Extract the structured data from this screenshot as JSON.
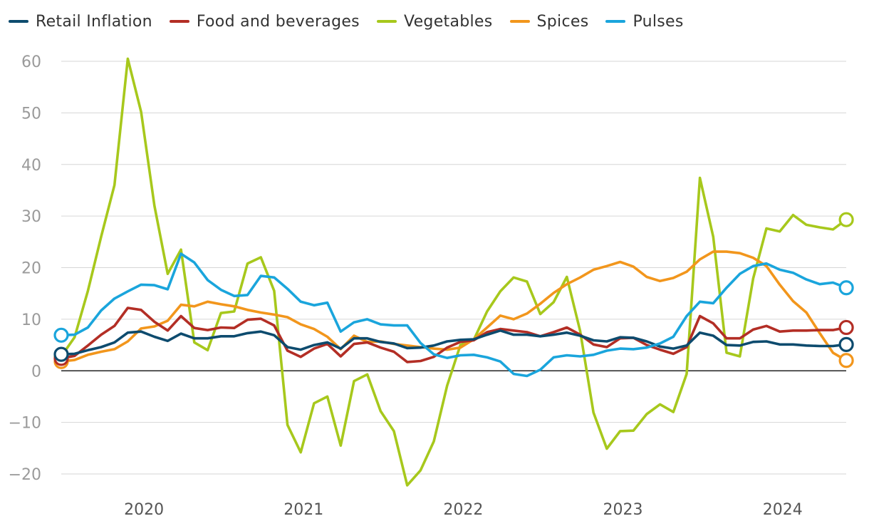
{
  "chart_data": {
    "type": "line",
    "x_start": "2019-07",
    "yticks": [
      -20,
      -10,
      0,
      10,
      20,
      30,
      40,
      50,
      60
    ],
    "ylim": [
      -22,
      62
    ],
    "xticks": [
      {
        "label": "2020",
        "index": 6
      },
      {
        "label": "2021",
        "index": 18
      },
      {
        "label": "2022",
        "index": 30
      },
      {
        "label": "2023",
        "index": 42
      },
      {
        "label": "2024",
        "index": 54
      }
    ],
    "series": [
      {
        "name": "Vegetables",
        "color": "#a7c81c",
        "values": [
          2.8,
          6.5,
          15.5,
          26.0,
          36.0,
          60.5,
          50.2,
          32.0,
          18.8,
          23.5,
          5.5,
          4.0,
          11.2,
          11.5,
          20.8,
          22.0,
          15.5,
          -10.5,
          -15.8,
          -6.3,
          -5.0,
          -14.5,
          -2.0,
          -0.7,
          -7.8,
          -11.7,
          -22.2,
          -19.3,
          -13.7,
          -2.9,
          5.0,
          6.0,
          11.5,
          15.4,
          18.1,
          17.3,
          11.0,
          13.3,
          18.2,
          7.7,
          -8.1,
          -15.1,
          -11.7,
          -11.6,
          -8.4,
          -6.5,
          -8.0,
          -0.6,
          37.4,
          26.0,
          3.5,
          2.8,
          17.9,
          27.6,
          27.0,
          30.2,
          28.3,
          27.8,
          27.4,
          29.3
        ]
      },
      {
        "name": "Spices",
        "color": "#f2961c",
        "values": [
          1.8,
          2.1,
          3.1,
          3.7,
          4.2,
          5.7,
          8.2,
          8.6,
          9.7,
          12.8,
          12.5,
          13.4,
          12.9,
          12.5,
          11.8,
          11.3,
          10.9,
          10.4,
          9.0,
          8.1,
          6.6,
          4.2,
          6.8,
          5.6,
          5.7,
          5.2,
          4.9,
          4.6,
          4.3,
          4.1,
          4.5,
          6.1,
          8.4,
          10.7,
          10.0,
          11.1,
          13.0,
          15.1,
          16.8,
          18.1,
          19.6,
          20.3,
          21.1,
          20.2,
          18.2,
          17.4,
          18.0,
          19.2,
          21.6,
          23.1,
          23.1,
          22.8,
          21.9,
          20.3,
          16.7,
          13.5,
          11.3,
          7.3,
          3.5,
          2.0
        ]
      },
      {
        "name": "Food and beverages",
        "color": "#b32e25",
        "values": [
          2.4,
          2.9,
          4.9,
          7.0,
          8.7,
          12.2,
          11.8,
          9.5,
          7.8,
          10.6,
          8.3,
          7.9,
          8.4,
          8.3,
          9.9,
          10.1,
          8.8,
          3.9,
          2.7,
          4.3,
          5.2,
          2.8,
          5.2,
          5.5,
          4.5,
          3.7,
          1.7,
          1.9,
          2.7,
          4.5,
          5.6,
          5.9,
          7.5,
          8.1,
          7.8,
          7.5,
          6.7,
          7.5,
          8.4,
          7.0,
          5.1,
          4.6,
          6.3,
          6.4,
          5.0,
          4.1,
          3.3,
          4.6,
          10.6,
          9.2,
          6.3,
          6.3,
          8.0,
          8.7,
          7.6,
          7.8,
          7.8,
          7.9,
          7.9,
          8.4
        ]
      },
      {
        "name": "Retail Inflation",
        "color": "#0d4b6e",
        "values": [
          3.2,
          3.3,
          4.0,
          4.6,
          5.5,
          7.4,
          7.6,
          6.6,
          5.8,
          7.2,
          6.3,
          6.3,
          6.7,
          6.7,
          7.3,
          7.6,
          6.9,
          4.6,
          4.1,
          5.0,
          5.5,
          4.3,
          6.3,
          6.3,
          5.6,
          5.3,
          4.4,
          4.5,
          4.9,
          5.7,
          6.0,
          6.1,
          7.0,
          7.8,
          7.0,
          7.0,
          6.7,
          7.0,
          7.4,
          6.8,
          5.9,
          5.7,
          6.5,
          6.4,
          5.7,
          4.7,
          4.3,
          4.9,
          7.4,
          6.8,
          5.0,
          4.9,
          5.6,
          5.7,
          5.1,
          5.1,
          4.9,
          4.8,
          4.8,
          5.1
        ]
      },
      {
        "name": "Pulses",
        "color": "#1aa5dc",
        "values": [
          6.9,
          7.0,
          8.4,
          11.7,
          14.0,
          15.4,
          16.7,
          16.6,
          15.8,
          22.7,
          21.0,
          17.6,
          15.7,
          14.5,
          14.7,
          18.4,
          18.1,
          15.9,
          13.4,
          12.7,
          13.2,
          7.6,
          9.4,
          10.0,
          9.0,
          8.8,
          8.8,
          5.4,
          3.2,
          2.5,
          3.0,
          3.1,
          2.6,
          1.8,
          -0.6,
          -1.0,
          0.2,
          2.6,
          3.0,
          2.8,
          3.1,
          3.9,
          4.3,
          4.2,
          4.5,
          5.3,
          6.6,
          10.6,
          13.4,
          13.1,
          16.1,
          18.8,
          20.3,
          20.8,
          19.6,
          19.0,
          17.7,
          16.8,
          17.1,
          16.1
        ]
      }
    ]
  },
  "legend": [
    {
      "name": "Retail Inflation",
      "color": "#0d4b6e"
    },
    {
      "name": "Food and beverages",
      "color": "#b32e25"
    },
    {
      "name": "Vegetables",
      "color": "#a7c81c"
    },
    {
      "name": "Spices",
      "color": "#f2961c"
    },
    {
      "name": "Pulses",
      "color": "#1aa5dc"
    }
  ]
}
